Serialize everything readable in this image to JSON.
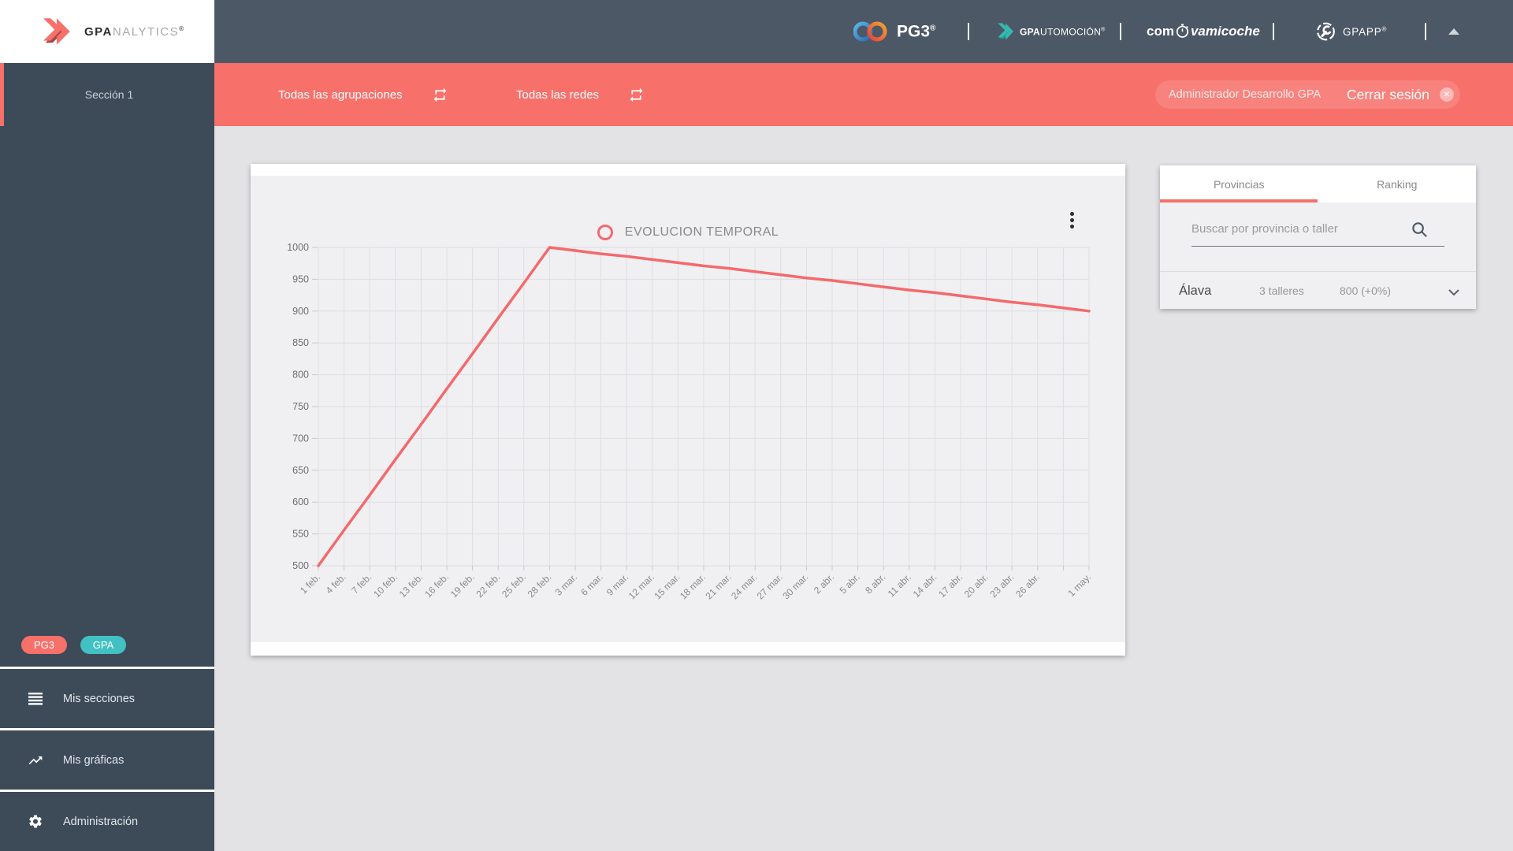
{
  "header": {
    "logo": {
      "brand_bold": "GPA",
      "brand_rest": "NALYTICS",
      "reg": "®"
    },
    "partners": {
      "pg3": {
        "label": "PG3",
        "reg": "®"
      },
      "gpautomocion": {
        "label_bold": "GPA",
        "label_rest": "UTOMOCIÓN",
        "reg": "®"
      },
      "compravamicoche": {
        "pre": "com",
        "post_italic": "vamicoche"
      },
      "gpapp": {
        "label": "GPAPP",
        "reg": "®"
      }
    }
  },
  "sidebar": {
    "section_label": "Sección 1",
    "badges": [
      {
        "label": "PG3",
        "color": "#f7706a"
      },
      {
        "label": "GPA",
        "color": "#41c1c1"
      }
    ],
    "menu": [
      {
        "label": "Mis secciones",
        "icon": "list-icon"
      },
      {
        "label": "Mis gráficas",
        "icon": "line-chart-icon"
      },
      {
        "label": "Administración",
        "icon": "gear-icon"
      }
    ]
  },
  "toolbar": {
    "filters": [
      {
        "label": "Todas las agrupaciones",
        "icon": "repeat-icon"
      },
      {
        "label": "Todas las redes",
        "icon": "repeat-icon"
      }
    ],
    "user": "Administrador Desarrollo GPA",
    "logout_label": "Cerrar sesión",
    "background": "#f7706a"
  },
  "chart_data": {
    "type": "line",
    "title": "EVOLUCION TEMPORAL",
    "categories": [
      "1 feb.",
      "4 feb.",
      "7 feb.",
      "10 feb.",
      "13 feb.",
      "16 feb.",
      "19 feb.",
      "22 feb.",
      "25 feb.",
      "28 feb.",
      "3 mar.",
      "6 mar.",
      "9 mar.",
      "12 mar.",
      "15 mar.",
      "18 mar.",
      "21 mar.",
      "24 mar.",
      "27 mar.",
      "30 mar.",
      "2 abr.",
      "5 abr.",
      "8 abr.",
      "11 abr.",
      "14 abr.",
      "17 abr.",
      "20 abr.",
      "23 abr.",
      "26 abr.",
      "",
      "1 may."
    ],
    "series": [
      {
        "name": "EVOLUCION TEMPORAL",
        "color": "#f4696c",
        "values": [
          500,
          556,
          611,
          667,
          722,
          778,
          833,
          889,
          944,
          1000,
          995,
          990,
          986,
          981,
          976,
          971,
          967,
          962,
          957,
          952,
          948,
          943,
          938,
          933,
          929,
          924,
          919,
          914,
          910,
          905,
          900
        ]
      }
    ],
    "ylim": [
      500,
      1000
    ],
    "ytick_step": 50,
    "grid": true,
    "legend_position": "top-center"
  },
  "panel": {
    "tabs": [
      {
        "label": "Provincias",
        "active": true
      },
      {
        "label": "Ranking",
        "active": false
      }
    ],
    "search_placeholder": "Buscar por provincia o taller",
    "rows": [
      {
        "province": "Álava",
        "talleres": "3 talleres",
        "value": "800 (+0%)"
      }
    ]
  },
  "colors": {
    "accent_red": "#f7706a",
    "line_red": "#f4696c",
    "badge_teal": "#41c1c1",
    "sidebar_bg": "#3d4b59",
    "header_bg": "#4d5866",
    "page_bg": "#e3e3e6",
    "chart_bg": "#f0f0f2"
  }
}
